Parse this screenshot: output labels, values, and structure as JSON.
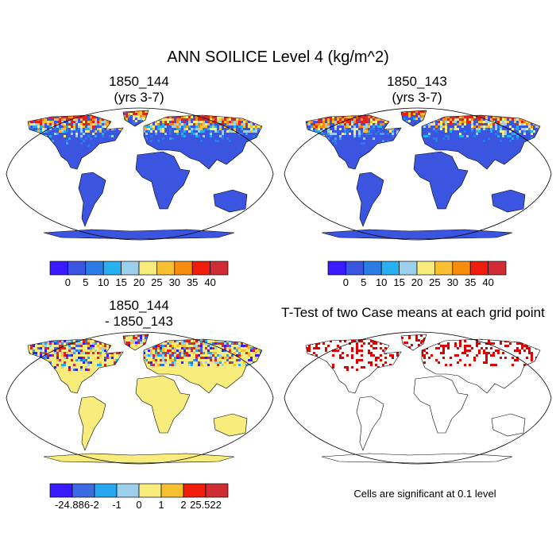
{
  "figure": {
    "title": "ANN SOILICE Level 4 (kg/m^2)",
    "footnote": "Cells are significant at 0.1 level"
  },
  "colors": {
    "scale_a": [
      "#3a1aff",
      "#3c55e0",
      "#2c7ce8",
      "#26b0f0",
      "#9ad0ec",
      "#f7ec7c",
      "#f8c030",
      "#f88c0c",
      "#f01c0c",
      "#d02c34"
    ],
    "scale_b": [
      "#3a1aff",
      "#3c6ae0",
      "#26a8f0",
      "#9ad0ec",
      "#f7ec7c",
      "#f8c030",
      "#f01c0c",
      "#d02c34"
    ],
    "land_base_a": "#3c55e0",
    "land_base_b": "#f7ec7c",
    "significant": "#e00000",
    "coast": "#000000"
  },
  "chart_data": [
    {
      "type": "heatmap",
      "projection": "Robinson",
      "title": "1850_144",
      "subtitle": "(yrs 3-7)",
      "colorbar": {
        "labels": [
          "0",
          "5",
          "10",
          "15",
          "20",
          "25",
          "30",
          "35",
          "40"
        ]
      }
    },
    {
      "type": "heatmap",
      "projection": "Robinson",
      "title": "1850_143",
      "subtitle": "(yrs 3-7)",
      "colorbar": {
        "labels": [
          "0",
          "5",
          "10",
          "15",
          "20",
          "25",
          "30",
          "35",
          "40"
        ]
      }
    },
    {
      "type": "heatmap",
      "projection": "Robinson",
      "title": "1850_144",
      "subtitle": "- 1850_143",
      "colorbar": {
        "labels": [
          "-24.886",
          "-2",
          "-1",
          "0",
          "1",
          "2",
          "25.522"
        ]
      }
    },
    {
      "type": "heatmap",
      "projection": "Robinson",
      "title": "T-Test of two Case means at each grid point"
    }
  ]
}
